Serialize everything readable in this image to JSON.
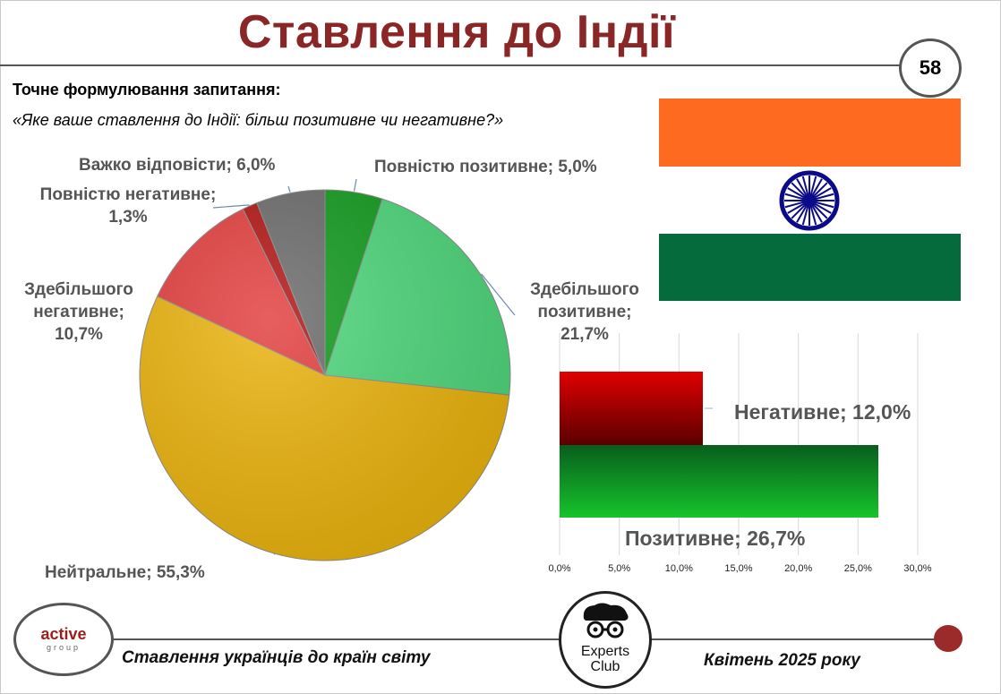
{
  "header": {
    "title": "Ставлення до Індії",
    "page_number": "58"
  },
  "question": {
    "label": "Точне формулювання запитання:",
    "text": "«Яке ваше ставлення до Індії: більш позитивне чи негативне?»"
  },
  "flag": {
    "saffron": "#ff6a21",
    "green": "#066b3c",
    "chakra": "#0b0b8a"
  },
  "chart_data": [
    {
      "type": "pie",
      "categories": [
        "Повністю позитивне",
        "Здебільшого позитивне",
        "Нейтральне",
        "Здебільшого негативне",
        "Повністю негативне",
        "Важко відповісти"
      ],
      "values": [
        5.0,
        21.7,
        55.3,
        10.7,
        1.3,
        6.0
      ],
      "colors": [
        "#0f9a1c",
        "#4cd67a",
        "#eab20a",
        "#e33c3c",
        "#b21212",
        "#6a6a6a"
      ],
      "labels": [
        [
          "Повністю позитивне; 5,0%"
        ],
        [
          "Здебільшого",
          "позитивне;",
          "21,7%"
        ],
        [
          "Нейтральне; 55,3%"
        ],
        [
          "Здебільшого",
          "негативне;",
          "10,7%"
        ],
        [
          "Повністю негативне;",
          "1,3%"
        ],
        [
          "Важко відповісти; 6,0%"
        ]
      ]
    },
    {
      "type": "bar",
      "orientation": "horizontal",
      "categories": [
        "Негативне",
        "Позитивне"
      ],
      "values": [
        12.0,
        26.7
      ],
      "colors": [
        "#c20d0d",
        "#11a825"
      ],
      "labels": [
        "Негативне; 12,0%",
        "Позитивне; 26,7%"
      ],
      "xlim": [
        0,
        30
      ],
      "xticks": [
        "0,0%",
        "5,0%",
        "10,0%",
        "15,0%",
        "20,0%",
        "25,0%",
        "30,0%"
      ],
      "grid": true
    }
  ],
  "footer": {
    "logo_active": "active",
    "logo_group": "group",
    "subtitle": "Ставлення українців до країн світу",
    "experts_line1": "Experts",
    "experts_line2": "Club",
    "date": "Квітень 2025 року"
  }
}
